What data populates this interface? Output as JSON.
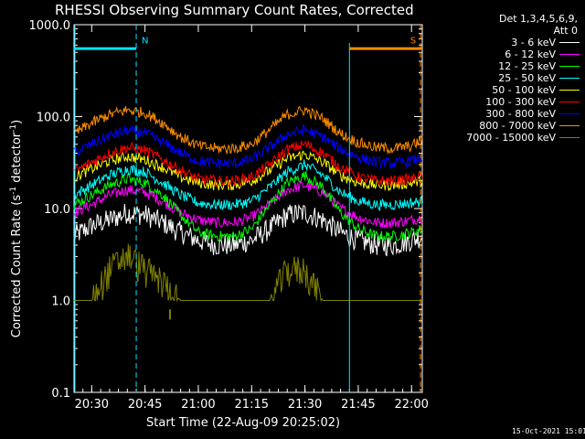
{
  "chart_data": {
    "type": "line",
    "title": "RHESSI Observing Summary Count Rates, Corrected",
    "xlabel": "Start Time (22-Aug-09 20:25:02)",
    "ylabel_main": "Corrected Count Rate (s",
    "ylabel_sup1": "-1",
    "ylabel_mid": " detector",
    "ylabel_sup2": "-1",
    "ylabel_end": ")",
    "y_scale": "log",
    "ylim": [
      0.1,
      1000
    ],
    "xlim_minutes": [
      0,
      98
    ],
    "x_ticks": [
      {
        "min": 4.97,
        "label": "20:30"
      },
      {
        "min": 19.97,
        "label": "20:45"
      },
      {
        "min": 34.97,
        "label": "21:00"
      },
      {
        "min": 49.97,
        "label": "21:15"
      },
      {
        "min": 64.97,
        "label": "21:30"
      },
      {
        "min": 79.97,
        "label": "21:45"
      },
      {
        "min": 94.97,
        "label": "22:00"
      }
    ],
    "y_ticks": [
      {
        "value": 0.1,
        "label": "0.1"
      },
      {
        "value": 1,
        "label": "1.0"
      },
      {
        "value": 10,
        "label": "10.0"
      },
      {
        "value": 100,
        "label": "100.0"
      },
      {
        "value": 1000,
        "label": "1000.0"
      }
    ],
    "legend_header": [
      "Det 1,3,4,5,6,9,",
      "Att 0"
    ],
    "legend_position": "top-right",
    "x_minutes": [
      0,
      5,
      10,
      15,
      20,
      25,
      30,
      35,
      40,
      45,
      50,
      55,
      60,
      65,
      70,
      75,
      80,
      85,
      90,
      95,
      98
    ],
    "series": [
      {
        "name": "3 - 6 keV",
        "color": "#000000",
        "values": [
          5,
          6.5,
          7.5,
          9,
          8.5,
          7,
          5.5,
          4.5,
          4,
          4,
          4.5,
          6,
          8.5,
          9,
          7.5,
          5.5,
          4.5,
          4,
          4,
          4.5,
          5
        ]
      },
      {
        "name": "6 - 12 keV",
        "color": "#ff00ff",
        "values": [
          9,
          11,
          14,
          16,
          15,
          12,
          9,
          7.5,
          7,
          7,
          8,
          11,
          16,
          18,
          15,
          10,
          8,
          7,
          7,
          7.5,
          8
        ]
      },
      {
        "name": "12 - 25 keV",
        "color": "#00ff00",
        "values": [
          11,
          14,
          18,
          21,
          19,
          14,
          8.5,
          5.5,
          5,
          5,
          6,
          11,
          19,
          23,
          17,
          9,
          6,
          5,
          5,
          5.5,
          6
        ]
      },
      {
        "name": "25 - 50 keV",
        "color": "#00ffff",
        "values": [
          14,
          18,
          23,
          27,
          25,
          19,
          14,
          11.5,
          11,
          11,
          12,
          17,
          25,
          30,
          23,
          15,
          12,
          11,
          11,
          11.5,
          12
        ]
      },
      {
        "name": "50 - 100 keV",
        "color": "#ffff00",
        "values": [
          22,
          27,
          33,
          37,
          34,
          28,
          22,
          19,
          18,
          18,
          20,
          26,
          35,
          39,
          32,
          23,
          19,
          18,
          18,
          19,
          20
        ]
      },
      {
        "name": "100 - 300 keV",
        "color": "#ff8080",
        "values": [
          25,
          32,
          40,
          46,
          43,
          34,
          26,
          21,
          20,
          20,
          22,
          30,
          44,
          50,
          40,
          28,
          22,
          20,
          20,
          21,
          23
        ]
      },
      {
        "name": "300 - 800 keV",
        "color": "#0000ff",
        "values": [
          40,
          50,
          62,
          70,
          66,
          52,
          40,
          33,
          31,
          31,
          34,
          46,
          64,
          72,
          60,
          44,
          36,
          32,
          31,
          33,
          36
        ]
      },
      {
        "name": "800 - 7000 keV",
        "color": "#ff0000",
        "values": [
          65,
          85,
          105,
          118,
          110,
          85,
          60,
          48,
          45,
          45,
          50,
          72,
          105,
          118,
          95,
          65,
          52,
          46,
          45,
          48,
          56
        ]
      },
      {
        "name": "7000 - 15000 keV",
        "color": "#808000",
        "values": [
          1,
          1,
          2.2,
          3.2,
          2.2,
          1.6,
          1,
          1,
          1,
          1,
          1,
          1,
          2.2,
          2.2,
          1,
          1,
          1,
          1,
          1,
          1,
          1
        ]
      }
    ],
    "legend_lines": [
      {
        "label": "3 - 6 keV",
        "color": "#ffffff"
      },
      {
        "label": "6 - 12 keV",
        "color": "#ff00ff"
      },
      {
        "label": "12 - 25 keV",
        "color": "#00ff00"
      },
      {
        "label": "25 - 50 keV",
        "color": "#00ffff"
      },
      {
        "label": "50 - 100 keV",
        "color": "#ffff00"
      },
      {
        "label": "100 - 300 keV",
        "color": "#ff0000"
      },
      {
        "label": "300 - 800 keV",
        "color": "#0000ff"
      },
      {
        "label": "800 - 7000 keV",
        "color": "#ff8c00"
      },
      {
        "label": "7000 - 15000 keV",
        "color": "#808000"
      }
    ],
    "markers": [
      {
        "label": "N",
        "color": "#00e5ff",
        "bar_from_min": 0,
        "bar_to_min": 17.5,
        "line_min": 17.5,
        "bar_value": 550
      },
      {
        "label": "S",
        "color": "#ff8c00",
        "bar_from_min": 77.5,
        "bar_to_min": 98,
        "line_min": 97.5,
        "bar_value": 550
      }
    ],
    "saa_line": {
      "color": "#00e5ff",
      "at_min": 77.5
    }
  },
  "timestamp": "15-Oct-2021 15:01"
}
